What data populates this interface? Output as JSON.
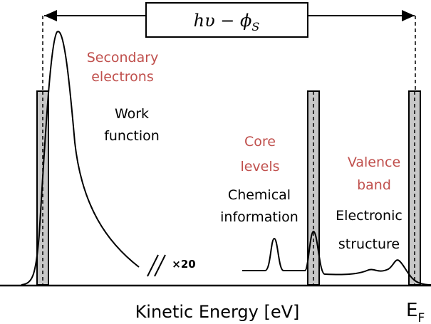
{
  "formula": {
    "main": "hυ − ϕ",
    "sub": "S"
  },
  "secondary_electrons": [
    "Secondary",
    "electrons"
  ],
  "work_function": [
    "Work",
    "function"
  ],
  "core_levels": [
    "Core",
    "levels"
  ],
  "chemical_information": [
    "Chemical",
    "information"
  ],
  "valence_band": [
    "Valence",
    "band"
  ],
  "electronic_structure": [
    "Electronic",
    "structure"
  ],
  "scale_factor": "×20",
  "x_axis_label": "Kinetic Energy [eV]",
  "fermi_level": {
    "main": "E",
    "sub": "F"
  }
}
